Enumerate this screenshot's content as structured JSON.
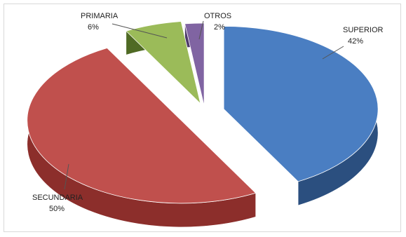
{
  "chart_data": {
    "type": "pie",
    "title": "",
    "exploded": true,
    "style": "3d",
    "legend": "none",
    "slices": [
      {
        "label": "SUPERIOR",
        "value": 42,
        "value_label": "42%",
        "color": "#4a7ec2",
        "side_color": "#2b4f7f"
      },
      {
        "label": "SECUNDARIA",
        "value": 50,
        "value_label": "50%",
        "color": "#c0504d",
        "side_color": "#8c2e2b"
      },
      {
        "label": "PRIMARIA",
        "value": 6,
        "value_label": "6%",
        "color": "#9bbb59",
        "side_color": "#4f6a24"
      },
      {
        "label": "OTROS",
        "value": 2,
        "value_label": "2%",
        "color": "#8064a2",
        "side_color": "#4e3a6b"
      }
    ]
  }
}
